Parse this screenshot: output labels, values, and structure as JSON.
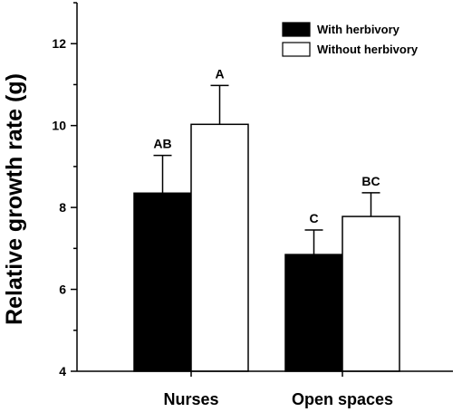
{
  "chart_data": {
    "type": "bar",
    "categories": [
      "Nurses",
      "Open spaces"
    ],
    "series": [
      {
        "name": "With herbivory",
        "color": "#000000",
        "values": [
          8.35,
          6.85
        ],
        "errors": [
          0.92,
          0.6
        ],
        "labels": [
          "AB",
          "C"
        ]
      },
      {
        "name": "Without herbivory",
        "color": "#ffffff",
        "values": [
          10.03,
          7.78
        ],
        "errors": [
          0.95,
          0.58
        ],
        "labels": [
          "A",
          "BC"
        ]
      }
    ],
    "title": "",
    "xlabel": "",
    "ylabel": "Relative growth rate (g)",
    "ylim": [
      4,
      13
    ],
    "yticks": [
      4,
      6,
      8,
      10,
      12
    ],
    "legend_position": "top-right",
    "grid": false
  }
}
